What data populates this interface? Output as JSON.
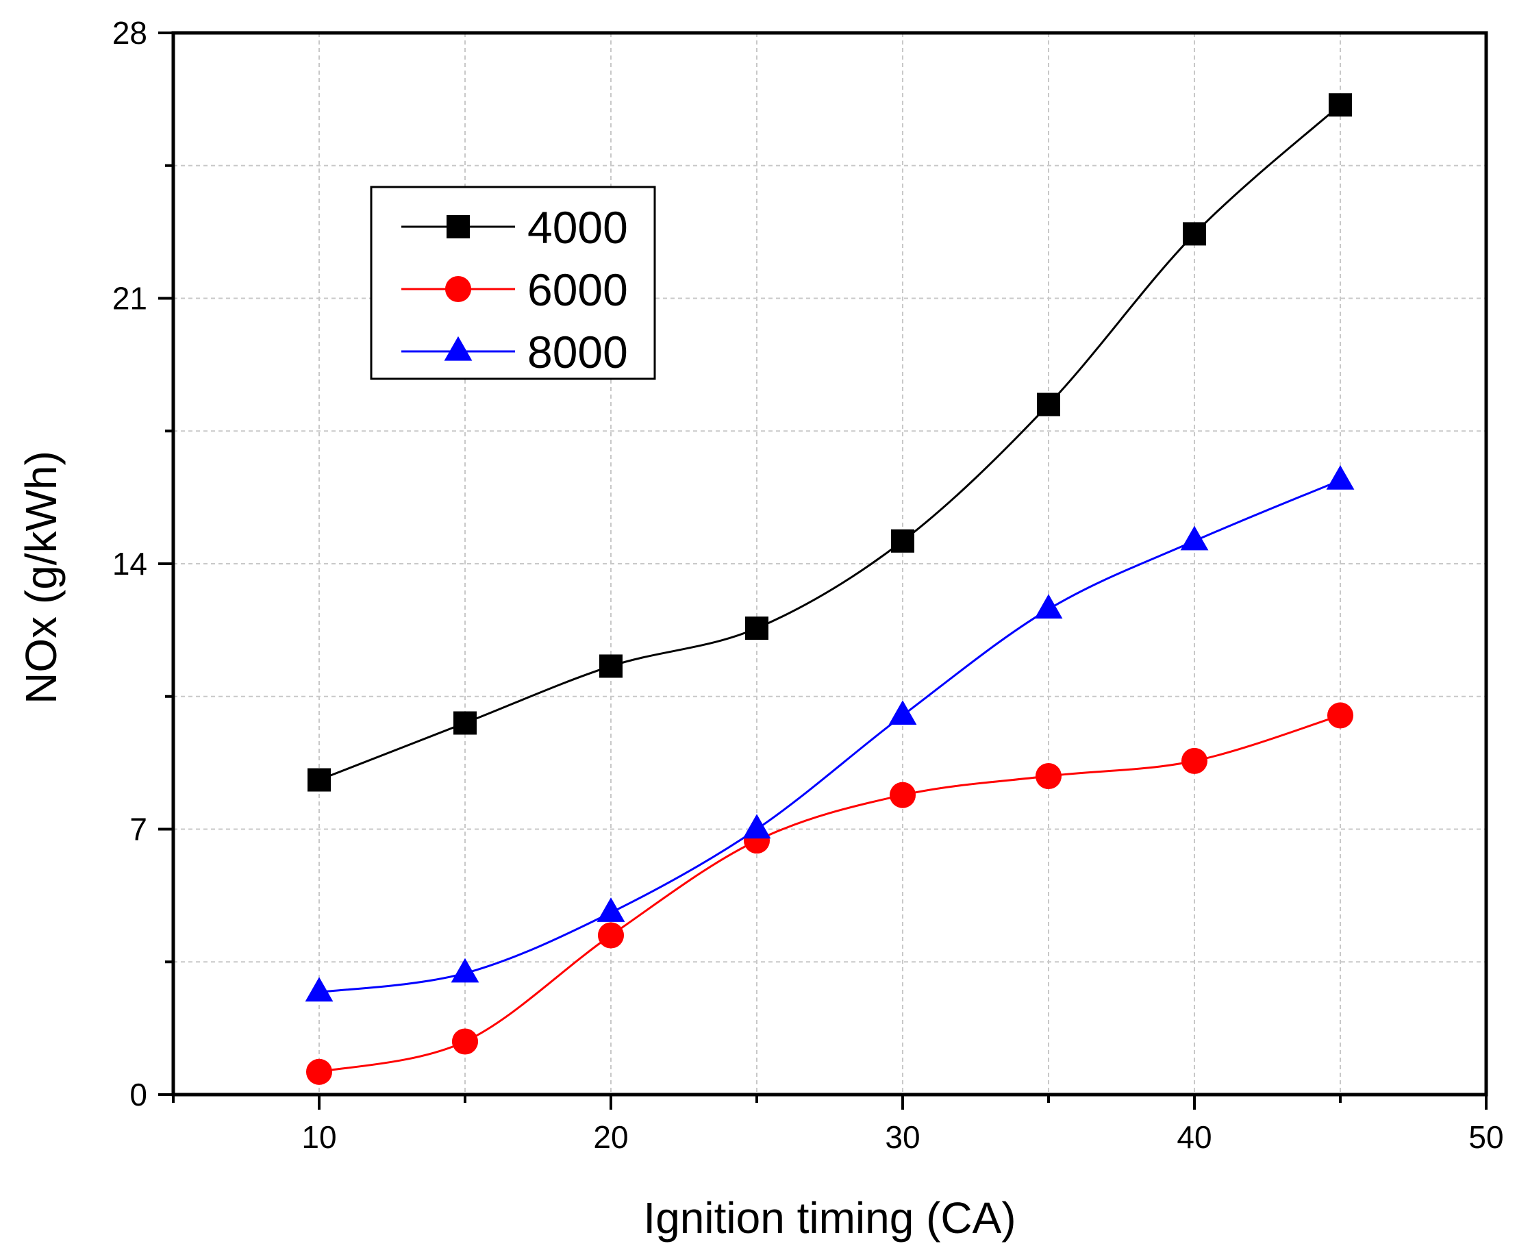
{
  "chart_data": {
    "type": "line",
    "xlabel": "Ignition timing (CA)",
    "ylabel": "NOx (g/kWh)",
    "xlim": [
      5,
      50
    ],
    "ylim": [
      0,
      28
    ],
    "xticks": [
      10,
      20,
      30,
      40,
      50
    ],
    "xtick_labels": [
      "10",
      "20",
      "30",
      "40",
      "50"
    ],
    "xminor": [
      5,
      15,
      25,
      35,
      45
    ],
    "yticks": [
      0,
      7,
      14,
      21,
      28
    ],
    "ytick_labels": [
      "0",
      "7",
      "14",
      "21",
      "28"
    ],
    "yminor": [
      3.5,
      10.5,
      17.5,
      24.5
    ],
    "grid": true,
    "legend_position": "top-left",
    "x": [
      10,
      15,
      20,
      25,
      30,
      35,
      40,
      45
    ],
    "series": [
      {
        "name": "4000",
        "color": "#000000",
        "marker": "square",
        "values": [
          8.3,
          9.8,
          11.3,
          12.3,
          14.6,
          18.2,
          22.7,
          26.1
        ]
      },
      {
        "name": "6000",
        "color": "#ff0000",
        "marker": "circle",
        "values": [
          0.6,
          1.4,
          4.2,
          6.7,
          7.9,
          8.4,
          8.8,
          10.0
        ]
      },
      {
        "name": "8000",
        "color": "#0000ff",
        "marker": "triangle",
        "values": [
          2.7,
          3.2,
          4.8,
          7.0,
          10.0,
          12.8,
          14.6,
          16.2
        ]
      }
    ]
  }
}
